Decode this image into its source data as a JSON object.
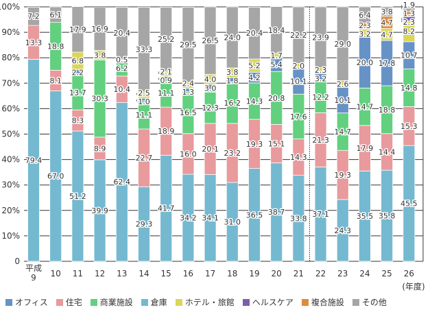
{
  "chart_data": {
    "type": "bar",
    "stacked": true,
    "categories": [
      "平成\n9",
      "10",
      "11",
      "12",
      "13",
      "14",
      "15",
      "16",
      "17",
      "18",
      "19",
      "20",
      "21",
      "22",
      "23",
      "24",
      "25",
      "26"
    ],
    "x_unit_label": "(年度)",
    "ylim": [
      0,
      100
    ],
    "yticks": [
      "0",
      "10%",
      "20%",
      "30%",
      "40%",
      "50%",
      "60%",
      "70%",
      "80%",
      "90%",
      "100%"
    ],
    "series": [
      {
        "name": "倉庫",
        "color": "#75b9d1",
        "values": [
          79.4,
          67.0,
          51.2,
          39.9,
          62.4,
          29.3,
          41.7,
          34.2,
          34.1,
          31.0,
          36.5,
          38.7,
          33.8,
          37.1,
          24.3,
          35.5,
          35.8,
          45.5
        ]
      },
      {
        "name": "住宅",
        "color": "#e89a9c",
        "values": [
          13.3,
          8.1,
          8.3,
          8.9,
          10.4,
          22.7,
          18.9,
          16.0,
          20.1,
          23.2,
          19.3,
          15.1,
          14.3,
          21.3,
          19.3,
          17.9,
          14.4,
          15.3
        ]
      },
      {
        "name": "商業施設",
        "color": "#62d07f",
        "values": [
          0,
          18.8,
          13.7,
          30.3,
          6.2,
          11.1,
          11.1,
          16.5,
          12.3,
          16.2,
          14.3,
          20.8,
          17.6,
          12.2,
          14.7,
          14.7,
          18.8,
          14.8
        ]
      },
      {
        "name": "オフィス",
        "color": "#6792c6",
        "values": [
          0,
          0,
          2.2,
          0,
          0,
          1.0,
          0.9,
          1.3,
          3.0,
          1.8,
          4.2,
          5.4,
          10.1,
          3.2,
          10.1,
          20.0,
          17.8,
          10.7
        ]
      },
      {
        "name": "ホテル・旅館",
        "color": "#d9d65a",
        "values": [
          0,
          0,
          6.8,
          3.8,
          0.5,
          2.5,
          2.1,
          2.4,
          4.0,
          3.8,
          5.2,
          1.7,
          2.0,
          2.3,
          2.6,
          3.2,
          4.7,
          8.2
        ]
      },
      {
        "name": "ヘルスケア",
        "color": "#7d5fa8",
        "values": [
          0,
          0,
          0,
          0,
          0,
          0,
          0,
          0,
          0,
          0,
          0,
          0,
          0,
          0,
          0,
          0,
          0,
          2.3
        ]
      },
      {
        "name": "複合施設",
        "color": "#e08a3c",
        "values": [
          0,
          0,
          0,
          0,
          0,
          0,
          0,
          0,
          0,
          0,
          0,
          0,
          0,
          0,
          0,
          2.3,
          4.7,
          1.3
        ]
      },
      {
        "name": "その他",
        "color": "#a6a6a6",
        "values": [
          7.2,
          6.1,
          17.9,
          16.9,
          20.4,
          33.3,
          25.2,
          29.5,
          26.5,
          24.0,
          20.4,
          18.4,
          22.2,
          23.9,
          29.0,
          6.4,
          3.8,
          1.9
        ]
      }
    ],
    "legend_order": [
      "オフィス",
      "住宅",
      "商業施設",
      "倉庫",
      "ホテル・旅館",
      "ヘルスケア",
      "複合施設",
      "その他"
    ],
    "legend_position": "bottom",
    "grid": true,
    "divider_after": "21"
  }
}
